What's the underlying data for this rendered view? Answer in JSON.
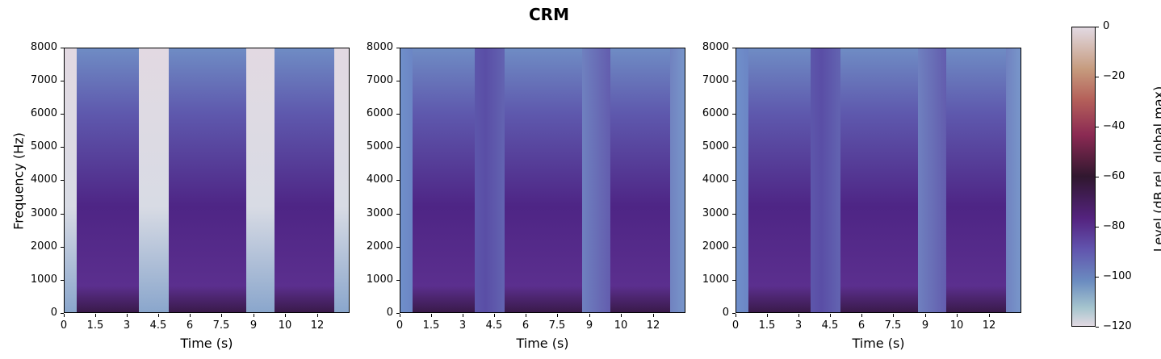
{
  "figure": {
    "title": "CRM"
  },
  "chart_data": {
    "type": "heatmap",
    "title": "CRM",
    "panels": [
      {
        "name": "panel-1",
        "xlabel": "Time (s)",
        "ylabel": "Frequency (Hz)",
        "description": "clean spectrogram, light silent gaps"
      },
      {
        "name": "panel-2",
        "xlabel": "Time (s)",
        "ylabel": "",
        "description": "noisy spectrogram"
      },
      {
        "name": "panel-3",
        "xlabel": "Time (s)",
        "ylabel": "",
        "description": "noisy spectrogram variant"
      }
    ],
    "xticks": [
      "0",
      "1.5",
      "3",
      "4.5",
      "6",
      "7.5",
      "9",
      "10",
      "12"
    ],
    "xtick_pos": [
      0,
      39,
      78,
      117,
      156,
      195,
      235,
      274,
      314
    ],
    "yticks": [
      "8000",
      "7000",
      "6000",
      "5000",
      "4000",
      "3000",
      "2000",
      "1000",
      "0"
    ],
    "ylim": [
      0,
      8000
    ],
    "colorbar": {
      "label": "Level (dB rel. global max)",
      "ticks": [
        "0",
        "−20",
        "−40",
        "−60",
        "−80",
        "−100",
        "−120"
      ],
      "range": [
        -120,
        0
      ],
      "colormap": "twilight"
    }
  }
}
